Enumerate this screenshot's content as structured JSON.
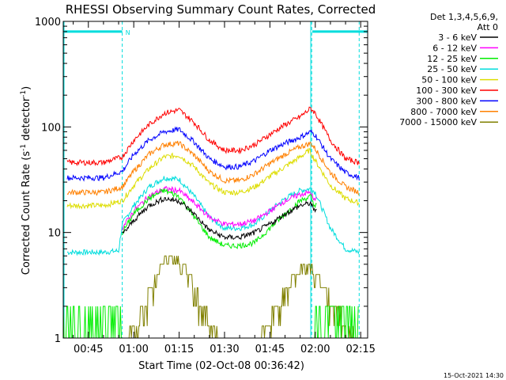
{
  "chart_data": {
    "type": "line",
    "title": "RHESSI Observing Summary Count Rates, Corrected",
    "xlabel": "Start Time (02-Oct-08 00:36:42)",
    "ylabel_main": "Corrected Count Rate (s",
    "ylabel_sup1": "-1",
    "ylabel_mid": " detector",
    "ylabel_sup2": "-1",
    "ylabel_end": ")",
    "y_scale": "log",
    "ylim": [
      1,
      1000
    ],
    "xlim_minutes": [
      36.7,
      137.3
    ],
    "x_ticks": [
      {
        "m": 45,
        "label": "00:45"
      },
      {
        "m": 60,
        "label": "01:00"
      },
      {
        "m": 75,
        "label": "01:15"
      },
      {
        "m": 90,
        "label": "01:30"
      },
      {
        "m": 105,
        "label": "01:45"
      },
      {
        "m": 120,
        "label": "02:00"
      },
      {
        "m": 135,
        "label": "02:15"
      }
    ],
    "y_ticks": [
      {
        "v": 1,
        "label": "1"
      },
      {
        "v": 10,
        "label": "10"
      },
      {
        "v": 100,
        "label": "100"
      },
      {
        "v": 1000,
        "label": "1000"
      }
    ],
    "legend_header": [
      "Det 1,3,4,5,6,9,",
      "Att 0"
    ],
    "legend_placement": "right-outside",
    "night_flag_label": "N",
    "night_intervals_minutes": [
      [
        36.7,
        56.2
      ],
      [
        119.0,
        137.3
      ]
    ],
    "eclipse_boundaries_minutes": [
      56.2,
      118.8,
      134.5
    ],
    "cyan_marker_minute": 118.5,
    "footer_date": "15-Oct-2021 14:30",
    "series": [
      {
        "name": "3 - 6 keV",
        "color": "#000000",
        "points": [
          [
            56.2,
            9.5
          ],
          [
            60,
            13
          ],
          [
            65,
            18
          ],
          [
            70,
            21
          ],
          [
            75,
            20
          ],
          [
            80,
            15
          ],
          [
            85,
            10.5
          ],
          [
            90,
            9
          ],
          [
            95,
            9
          ],
          [
            100,
            10
          ],
          [
            105,
            12
          ],
          [
            110,
            15
          ],
          [
            115,
            18
          ],
          [
            118.5,
            19
          ],
          [
            119.5,
            16
          ],
          [
            120.5,
            17
          ]
        ]
      },
      {
        "name": "6 - 12 keV",
        "color": "#ff00ff",
        "points": [
          [
            56.2,
            11
          ],
          [
            60,
            16
          ],
          [
            65,
            22
          ],
          [
            70,
            26
          ],
          [
            75,
            25
          ],
          [
            80,
            19
          ],
          [
            85,
            14
          ],
          [
            90,
            12
          ],
          [
            95,
            12
          ],
          [
            100,
            13
          ],
          [
            105,
            16
          ],
          [
            110,
            20
          ],
          [
            115,
            23
          ],
          [
            118.5,
            24
          ],
          [
            119.5,
            20
          ],
          [
            120.5,
            21
          ]
        ]
      },
      {
        "name": "12 - 25 keV",
        "color": "#00ee00",
        "points": [
          [
            56.2,
            10
          ],
          [
            60,
            15
          ],
          [
            65,
            21
          ],
          [
            70,
            25
          ],
          [
            75,
            22
          ],
          [
            80,
            14
          ],
          [
            85,
            9
          ],
          [
            90,
            7.5
          ],
          [
            95,
            7.5
          ],
          [
            100,
            8
          ],
          [
            105,
            11
          ],
          [
            110,
            15
          ],
          [
            115,
            20
          ],
          [
            118.5,
            22
          ],
          [
            119.5,
            18
          ],
          [
            120.5,
            19
          ]
        ]
      },
      {
        "name": "25 - 50 keV",
        "color": "#00dddd",
        "points": [
          [
            38,
            6.5
          ],
          [
            50,
            6.5
          ],
          [
            55,
            6.7
          ],
          [
            56.2,
            12
          ],
          [
            60,
            18
          ],
          [
            65,
            27
          ],
          [
            70,
            33
          ],
          [
            75,
            32
          ],
          [
            80,
            22
          ],
          [
            85,
            14
          ],
          [
            90,
            11
          ],
          [
            95,
            11
          ],
          [
            100,
            12
          ],
          [
            105,
            16
          ],
          [
            110,
            21
          ],
          [
            115,
            25
          ],
          [
            118.5,
            26
          ],
          [
            120,
            24
          ],
          [
            125,
            11
          ],
          [
            130,
            7
          ],
          [
            134.5,
            6.5
          ]
        ]
      },
      {
        "name": "50 - 100 keV",
        "color": "#dddd00",
        "points": [
          [
            38,
            18
          ],
          [
            50,
            18
          ],
          [
            56.2,
            20
          ],
          [
            60,
            28
          ],
          [
            65,
            40
          ],
          [
            70,
            52
          ],
          [
            75,
            54
          ],
          [
            80,
            42
          ],
          [
            85,
            29
          ],
          [
            90,
            24
          ],
          [
            95,
            24
          ],
          [
            100,
            27
          ],
          [
            105,
            34
          ],
          [
            110,
            42
          ],
          [
            115,
            52
          ],
          [
            118,
            60
          ],
          [
            120,
            48
          ],
          [
            125,
            28
          ],
          [
            130,
            21
          ],
          [
            134.5,
            19
          ]
        ]
      },
      {
        "name": "100 - 300 keV",
        "color": "#ff0000",
        "points": [
          [
            38,
            46
          ],
          [
            50,
            46
          ],
          [
            56.2,
            52
          ],
          [
            60,
            75
          ],
          [
            65,
            105
          ],
          [
            70,
            135
          ],
          [
            75,
            145
          ],
          [
            80,
            110
          ],
          [
            85,
            75
          ],
          [
            90,
            60
          ],
          [
            95,
            60
          ],
          [
            100,
            68
          ],
          [
            105,
            85
          ],
          [
            110,
            105
          ],
          [
            115,
            125
          ],
          [
            118.5,
            150
          ],
          [
            120,
            135
          ],
          [
            125,
            75
          ],
          [
            130,
            50
          ],
          [
            134.5,
            46
          ]
        ]
      },
      {
        "name": "300 - 800 keV",
        "color": "#0000ff",
        "points": [
          [
            38,
            33
          ],
          [
            50,
            33
          ],
          [
            56.2,
            38
          ],
          [
            60,
            55
          ],
          [
            65,
            75
          ],
          [
            70,
            90
          ],
          [
            75,
            95
          ],
          [
            80,
            72
          ],
          [
            85,
            50
          ],
          [
            90,
            42
          ],
          [
            95,
            42
          ],
          [
            100,
            48
          ],
          [
            105,
            60
          ],
          [
            110,
            70
          ],
          [
            115,
            80
          ],
          [
            118.5,
            90
          ],
          [
            120,
            84
          ],
          [
            125,
            50
          ],
          [
            130,
            37
          ],
          [
            134.5,
            33
          ]
        ]
      },
      {
        "name": "800 - 7000 keV",
        "color": "#ff8000",
        "points": [
          [
            38,
            24
          ],
          [
            50,
            24
          ],
          [
            56.2,
            27
          ],
          [
            60,
            38
          ],
          [
            65,
            55
          ],
          [
            70,
            68
          ],
          [
            75,
            70
          ],
          [
            80,
            54
          ],
          [
            85,
            38
          ],
          [
            90,
            31
          ],
          [
            95,
            31
          ],
          [
            100,
            36
          ],
          [
            105,
            45
          ],
          [
            110,
            55
          ],
          [
            115,
            65
          ],
          [
            118.5,
            70
          ],
          [
            120,
            62
          ],
          [
            125,
            37
          ],
          [
            130,
            27
          ],
          [
            134.5,
            24
          ]
        ]
      },
      {
        "name": "7000 - 15000 keV",
        "color": "#808000",
        "points": [
          [
            56.2,
            1
          ],
          [
            59,
            1.3
          ],
          [
            62,
            2
          ],
          [
            65,
            3
          ],
          [
            68,
            4.5
          ],
          [
            70,
            5.7
          ],
          [
            75,
            5.7
          ],
          [
            78,
            4.5
          ],
          [
            81,
            3
          ],
          [
            84,
            2
          ],
          [
            87,
            1.3
          ],
          [
            90,
            1
          ],
          [
            100,
            1
          ],
          [
            103,
            1.3
          ],
          [
            106,
            2
          ],
          [
            109,
            3
          ],
          [
            112,
            4
          ],
          [
            115,
            5
          ],
          [
            118.5,
            5
          ],
          [
            120,
            4.5
          ],
          [
            124,
            3
          ],
          [
            128,
            2
          ],
          [
            132,
            1.3
          ],
          [
            134.5,
            1
          ]
        ]
      }
    ]
  }
}
